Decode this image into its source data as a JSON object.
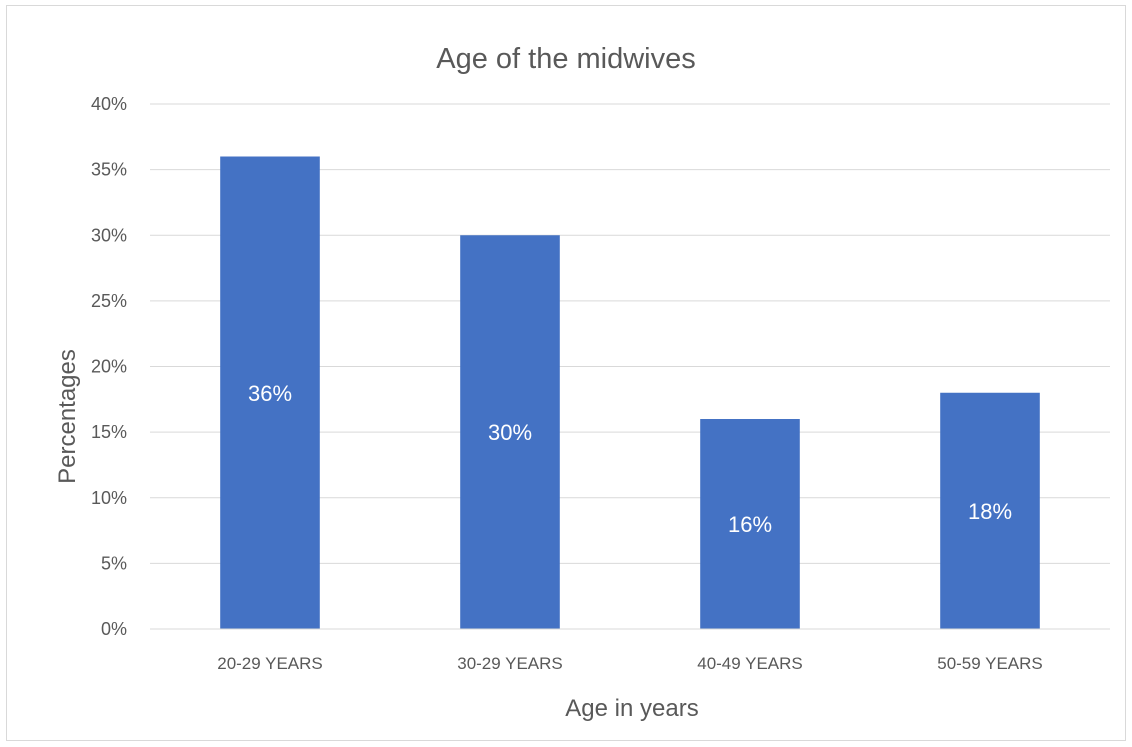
{
  "chart_data": {
    "type": "bar",
    "title": "Age of the midwives",
    "xlabel": "Age in years",
    "ylabel": "Percentages",
    "categories": [
      "20-29 YEARS",
      "30-29 YEARS",
      "40-49 YEARS",
      "50-59 YEARS"
    ],
    "values": [
      36,
      30,
      16,
      18
    ],
    "data_labels": [
      "36%",
      "30%",
      "16%",
      "18%"
    ],
    "ylim": [
      0,
      40
    ],
    "yticks": [
      0,
      5,
      10,
      15,
      20,
      25,
      30,
      35,
      40
    ],
    "ytick_labels": [
      "0%",
      "5%",
      "10%",
      "15%",
      "20%",
      "25%",
      "30%",
      "35%",
      "40%"
    ],
    "grid": true,
    "legend": "none",
    "bar_color": "#4472c4"
  }
}
